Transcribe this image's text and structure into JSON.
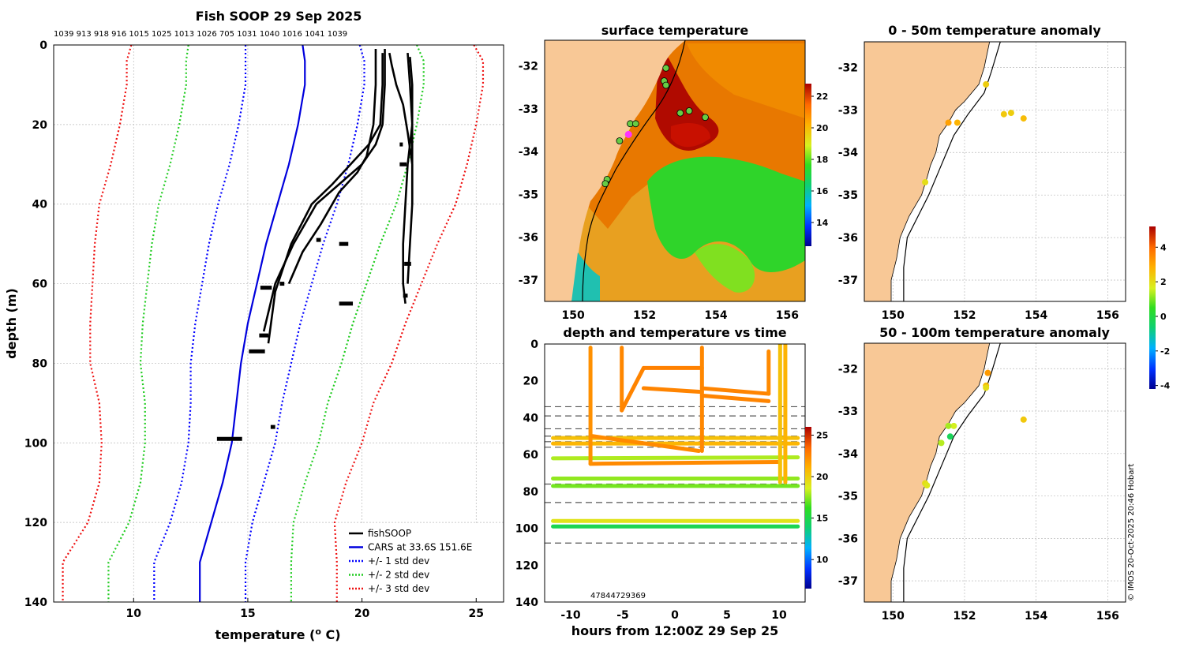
{
  "copyright": "© IMOS 20-Oct-2025 20:46 Hobart",
  "colors": {
    "land": "#f8c896",
    "grid": "#bbbbbb",
    "cars": "#0000dd",
    "std1": "#0000ff",
    "std2": "#22cc22",
    "std3": "#ee1111",
    "fish": "#000000",
    "magenta": "#ff33ff"
  },
  "chart_data": [
    {
      "id": "profile",
      "type": "line",
      "title": "Fish SOOP 29 Sep 2025",
      "xlabel": "temperature (",
      "xlabel_sup": "o",
      "xlabel_end": " C)",
      "ylabel": "depth (m)",
      "xlim": [
        6.5,
        26.2
      ],
      "ylim": [
        140,
        0
      ],
      "xticks": [
        10,
        15,
        20,
        25
      ],
      "yticks": [
        0,
        20,
        40,
        60,
        80,
        100,
        120,
        140
      ],
      "top_ids": [
        "1039",
        "913",
        "918",
        "916",
        "1015",
        "1025",
        "1013",
        "1026",
        "705",
        "1031",
        "1040",
        "1016",
        "1041",
        "1039"
      ],
      "legend": [
        {
          "label": "fishSOOP",
          "style": "solid",
          "color": "#000000"
        },
        {
          "label": "CARS at 33.6S 151.6E",
          "style": "solid",
          "color": "#0000dd"
        },
        {
          "label": "+/- 1 std dev",
          "style": "dotted",
          "color": "#0000ff"
        },
        {
          "label": "+/- 2 std dev",
          "style": "dotted",
          "color": "#22cc22"
        },
        {
          "label": "+/- 3 std dev",
          "style": "dotted",
          "color": "#ee1111"
        }
      ],
      "depths": [
        0,
        4,
        10,
        20,
        30,
        40,
        50,
        60,
        70,
        80,
        90,
        100,
        110,
        120,
        130,
        140
      ],
      "cars_mean": [
        17.4,
        17.5,
        17.5,
        17.2,
        16.8,
        16.3,
        15.8,
        15.4,
        15.0,
        14.7,
        14.5,
        14.3,
        13.9,
        13.4,
        12.9,
        12.9
      ],
      "cars_sd": [
        2.5,
        2.6,
        2.6,
        2.6,
        2.6,
        2.6,
        2.5,
        2.4,
        2.3,
        2.2,
        2.0,
        1.9,
        1.8,
        1.8,
        2.0,
        2.0
      ],
      "casts": [
        {
          "temps": [
            21.0,
            21.0,
            20.9,
            20.6,
            20.0,
            19.0,
            18.0,
            17.0,
            16.2,
            15.7
          ],
          "depths": [
            1,
            10,
            20,
            25,
            30,
            35,
            40,
            50,
            60,
            72
          ]
        },
        {
          "temps": [
            20.9,
            20.9,
            20.8,
            20.3,
            19.5,
            18.7,
            17.8,
            16.9,
            16.2,
            15.9
          ],
          "depths": [
            2,
            10,
            20,
            25,
            30,
            35,
            40,
            50,
            62,
            75
          ]
        },
        {
          "temps": [
            20.6,
            20.6,
            20.5,
            20.2,
            19.8,
            19.0,
            18.2,
            17.4,
            16.8
          ],
          "depths": [
            1,
            10,
            20,
            28,
            32,
            37,
            45,
            52,
            60
          ]
        },
        {
          "temps": [
            22.1,
            22.2,
            22.2,
            22.1,
            22.0,
            21.9,
            21.8,
            21.8,
            21.9
          ],
          "depths": [
            3,
            10,
            20,
            25,
            30,
            40,
            50,
            60,
            65
          ]
        },
        {
          "temps": [
            21.2,
            21.3,
            21.5,
            21.8,
            22.0,
            22.2,
            22.2,
            22.1,
            22.0
          ],
          "depths": [
            2,
            5,
            10,
            15,
            22,
            30,
            40,
            50,
            60
          ]
        },
        {
          "temps": [
            22.0,
            22.1,
            22.2,
            22.2,
            22.2
          ],
          "depths": [
            2,
            10,
            20,
            30,
            40
          ]
        }
      ],
      "clusters": [
        {
          "t": 14.2,
          "d": 99,
          "w": 1.1
        },
        {
          "t": 15.4,
          "d": 77,
          "w": 0.7
        },
        {
          "t": 15.7,
          "d": 73,
          "w": 0.4
        },
        {
          "t": 16.5,
          "d": 60,
          "w": 0.2
        },
        {
          "t": 15.8,
          "d": 61,
          "w": 0.5
        },
        {
          "t": 19.2,
          "d": 50,
          "w": 0.4
        },
        {
          "t": 18.1,
          "d": 49,
          "w": 0.2
        },
        {
          "t": 19.3,
          "d": 65,
          "w": 0.6
        },
        {
          "t": 16.1,
          "d": 96,
          "w": 0.2
        },
        {
          "t": 22.0,
          "d": 55,
          "w": 0.3
        },
        {
          "t": 21.9,
          "d": 63,
          "w": 0.2
        },
        {
          "t": 21.7,
          "d": 25,
          "w": 0.1
        },
        {
          "t": 21.8,
          "d": 30,
          "w": 0.3
        }
      ]
    },
    {
      "id": "sst",
      "type": "heatmap",
      "title": "surface temperature",
      "xlim": [
        149.2,
        156.5
      ],
      "ylim": [
        -37.5,
        -31.4
      ],
      "xticks": [
        150,
        152,
        154,
        156
      ],
      "yticks": [
        -32,
        -33,
        -34,
        -35,
        -36,
        -37
      ],
      "colorbar": {
        "min": 12.5,
        "max": 22.8,
        "ticks": [
          14,
          16,
          18,
          20,
          22
        ]
      },
      "stations": [
        {
          "lon": 152.6,
          "lat": -32.05
        },
        {
          "lon": 152.55,
          "lat": -32.35
        },
        {
          "lon": 152.6,
          "lat": -32.45
        },
        {
          "lon": 153.0,
          "lat": -33.1
        },
        {
          "lon": 153.25,
          "lat": -33.05
        },
        {
          "lon": 153.7,
          "lat": -33.2
        },
        {
          "lon": 151.6,
          "lat": -33.35
        },
        {
          "lon": 151.75,
          "lat": -33.35
        },
        {
          "lon": 151.3,
          "lat": -33.75
        },
        {
          "lon": 150.95,
          "lat": -34.65
        },
        {
          "lon": 150.9,
          "lat": -34.75
        }
      ],
      "magenta_station": {
        "lon": 151.55,
        "lat": -33.6
      }
    },
    {
      "id": "timeseries",
      "type": "scatter",
      "title": "depth and temperature vs time",
      "xlabel": "hours from 12:00Z 29 Sep 25",
      "xlim": [
        -12.5,
        12.5
      ],
      "ylim": [
        140,
        0
      ],
      "xticks": [
        -10,
        -5,
        0,
        5,
        10
      ],
      "yticks": [
        0,
        20,
        40,
        60,
        80,
        100,
        120,
        140
      ],
      "colorbar": {
        "min": 6.5,
        "max": 26,
        "ticks": [
          10,
          15,
          20,
          25
        ]
      },
      "dashed_depths": [
        34,
        39,
        46,
        50,
        53,
        56,
        76,
        86,
        108
      ],
      "annotation": "47844729369",
      "tracks": [
        {
          "x0": -11.7,
          "x1": 11.8,
          "d0": 51,
          "d1": 51,
          "t": 20.5
        },
        {
          "x0": -11.7,
          "x1": 11.8,
          "d0": 54,
          "d1": 54,
          "t": 20.9
        },
        {
          "x0": -11.7,
          "x1": 11.8,
          "d0": 62,
          "d1": 61.5,
          "t": 18.0
        },
        {
          "x0": -11.7,
          "x1": 11.8,
          "d0": 73,
          "d1": 73,
          "t": 17.6
        },
        {
          "x0": -11.7,
          "x1": 11.8,
          "d0": 77,
          "d1": 77,
          "t": 17.2
        },
        {
          "x0": -11.7,
          "x1": 11.8,
          "d0": 96,
          "d1": 96,
          "t": 19.1
        },
        {
          "x0": -11.7,
          "x1": 11.8,
          "d0": 99,
          "d1": 99,
          "t": 14.8
        },
        {
          "x0": -8.1,
          "x1": 9.9,
          "d0": 65,
          "d1": 64,
          "t": 22.4
        },
        {
          "x0": -8.1,
          "x1": -8.1,
          "d0": 2,
          "d1": 65,
          "t": 22.2
        },
        {
          "x0": -5.1,
          "x1": -5.1,
          "d0": 2,
          "d1": 36,
          "t": 22.5
        },
        {
          "x0": -5.1,
          "x1": -3.0,
          "d0": 36,
          "d1": 13,
          "t": 22.6
        },
        {
          "x0": -3.0,
          "x1": 2.6,
          "d0": 13,
          "d1": 13,
          "t": 22.7
        },
        {
          "x0": -3.0,
          "x1": 2.6,
          "d0": 24,
          "d1": 26,
          "t": 22.6
        },
        {
          "x0": 2.6,
          "x1": 2.6,
          "d0": 2,
          "d1": 58,
          "t": 22.5
        },
        {
          "x0": 2.6,
          "x1": 9.0,
          "d0": 24,
          "d1": 27,
          "t": 22.6
        },
        {
          "x0": 2.6,
          "x1": 9.0,
          "d0": 28,
          "d1": 31,
          "t": 22.6
        },
        {
          "x0": 9.0,
          "x1": 9.0,
          "d0": 27,
          "d1": 4,
          "t": 22.4
        },
        {
          "x0": -7.9,
          "x1": 2.3,
          "d0": 50,
          "d1": 58,
          "t": 22.4
        },
        {
          "x0": 10.1,
          "x1": 10.1,
          "d0": 0,
          "d1": 75,
          "t": 20.5
        },
        {
          "x0": 10.6,
          "x1": 10.6,
          "d0": 0,
          "d1": 75,
          "t": 21.0
        }
      ]
    },
    {
      "id": "anom0_50",
      "type": "scatter",
      "title": "0 - 50m temperature anomaly",
      "xlim": [
        149.2,
        156.5
      ],
      "ylim": [
        -37.5,
        -31.4
      ],
      "xticks": [
        150,
        152,
        154,
        156
      ],
      "yticks": [
        -32,
        -33,
        -34,
        -35,
        -36,
        -37
      ],
      "points": [
        {
          "lon": 152.6,
          "lat": -32.4,
          "v": 2.3
        },
        {
          "lon": 151.55,
          "lat": -33.3,
          "v": 3.1
        },
        {
          "lon": 151.8,
          "lat": -33.3,
          "v": 2.8
        },
        {
          "lon": 153.1,
          "lat": -33.1,
          "v": 2.4
        },
        {
          "lon": 153.3,
          "lat": -33.07,
          "v": 2.3
        },
        {
          "lon": 153.65,
          "lat": -33.2,
          "v": 2.6
        },
        {
          "lon": 150.9,
          "lat": -34.7,
          "v": 2.0
        }
      ]
    },
    {
      "id": "anom50_100",
      "type": "scatter",
      "title": "50 - 100m temperature anomaly",
      "xlim": [
        149.2,
        156.5
      ],
      "ylim": [
        -37.5,
        -31.4
      ],
      "xticks": [
        150,
        152,
        154,
        156
      ],
      "yticks": [
        -32,
        -33,
        -34,
        -35,
        -36,
        -37
      ],
      "colorbar": {
        "min": -4.2,
        "max": 5.2,
        "ticks": [
          -4,
          -2,
          0,
          2,
          4
        ]
      },
      "points": [
        {
          "lon": 152.65,
          "lat": -32.1,
          "v": 3.2
        },
        {
          "lon": 152.6,
          "lat": -32.4,
          "v": 2.6
        },
        {
          "lon": 152.6,
          "lat": -32.45,
          "v": 2.0
        },
        {
          "lon": 151.7,
          "lat": -33.35,
          "v": 1.6
        },
        {
          "lon": 151.55,
          "lat": -33.35,
          "v": 1.3
        },
        {
          "lon": 151.6,
          "lat": -33.6,
          "v": -0.3
        },
        {
          "lon": 151.35,
          "lat": -33.75,
          "v": 1.4
        },
        {
          "lon": 150.9,
          "lat": -34.7,
          "v": 2.0
        },
        {
          "lon": 150.95,
          "lat": -34.75,
          "v": 1.8
        },
        {
          "lon": 153.65,
          "lat": -33.2,
          "v": 2.4
        }
      ]
    }
  ]
}
